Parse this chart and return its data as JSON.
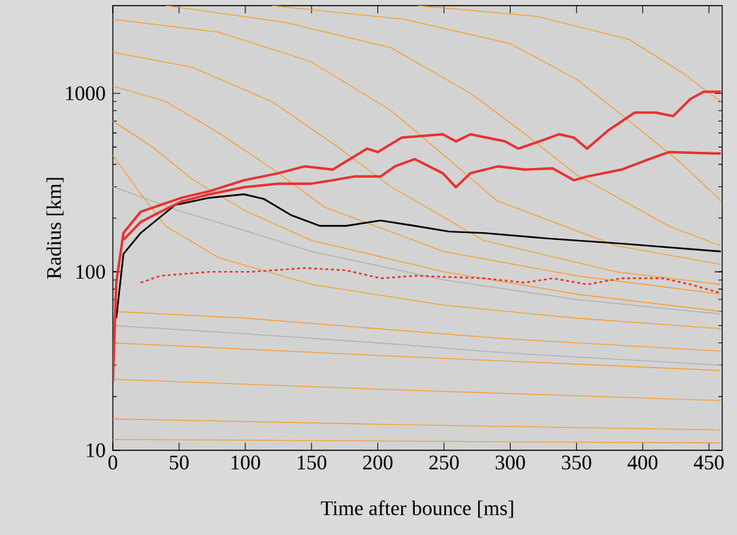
{
  "chart_data": {
    "type": "line",
    "xlabel": "Time after bounce [ms]",
    "ylabel": "Radius [km]",
    "log": "y",
    "xlim": [
      0,
      460
    ],
    "ylim": [
      10,
      3100
    ],
    "xticks": [
      0,
      50,
      100,
      150,
      200,
      250,
      300,
      350,
      400,
      450
    ],
    "yticks": [
      10,
      100,
      1000
    ],
    "series": [
      {
        "color": "#f5a030",
        "x": [
          0,
          30,
          60,
          100,
          150,
          250,
          350,
          459
        ],
        "values": [
          700,
          500,
          330,
          220,
          150,
          100,
          75,
          60
        ]
      },
      {
        "color": "#f5a030",
        "x": [
          0,
          40,
          80,
          120,
          160,
          250,
          350,
          459
        ],
        "values": [
          1100,
          900,
          600,
          380,
          230,
          130,
          95,
          75
        ]
      },
      {
        "color": "#f5a030",
        "x": [
          0,
          60,
          120,
          170,
          210,
          280,
          380,
          459
        ],
        "values": [
          1700,
          1400,
          900,
          500,
          300,
          150,
          100,
          85
        ]
      },
      {
        "color": "#f5a030",
        "x": [
          0,
          80,
          150,
          210,
          250,
          290,
          380,
          459
        ],
        "values": [
          2600,
          2200,
          1500,
          800,
          450,
          250,
          140,
          110
        ]
      },
      {
        "color": "#f5a030",
        "x": [
          40,
          130,
          210,
          270,
          310,
          350,
          420,
          459
        ],
        "values": [
          3100,
          2500,
          1800,
          1000,
          600,
          350,
          180,
          140
        ]
      },
      {
        "color": "#f5a030",
        "x": [
          120,
          220,
          300,
          350,
          390,
          430,
          459
        ],
        "values": [
          3100,
          2600,
          1900,
          1200,
          700,
          400,
          250
        ]
      },
      {
        "color": "#f5a030",
        "x": [
          230,
          320,
          390,
          430,
          459
        ],
        "values": [
          3100,
          2700,
          2000,
          1300,
          900
        ]
      },
      {
        "color": "#f5a030",
        "x": [
          0,
          20,
          40,
          80,
          150,
          250,
          350,
          459
        ],
        "values": [
          450,
          280,
          180,
          120,
          85,
          65,
          55,
          48
        ]
      },
      {
        "color": "#f5a030",
        "x": [
          0,
          100,
          200,
          300,
          459
        ],
        "values": [
          60,
          55,
          48,
          42,
          36
        ]
      },
      {
        "color": "#f5a030",
        "x": [
          0,
          200,
          459
        ],
        "values": [
          40,
          34,
          28
        ]
      },
      {
        "color": "#f5a030",
        "x": [
          0,
          200,
          459
        ],
        "values": [
          25,
          22,
          19
        ]
      },
      {
        "color": "#f5a030",
        "x": [
          0,
          200,
          459
        ],
        "values": [
          15,
          14,
          13
        ]
      },
      {
        "color": "#f5a030",
        "x": [
          0,
          459
        ],
        "values": [
          11.5,
          11
        ]
      },
      {
        "color": "#b0b0b0",
        "x": [
          0,
          50,
          100,
          150,
          250,
          350,
          459
        ],
        "values": [
          300,
          220,
          170,
          130,
          90,
          70,
          58
        ]
      },
      {
        "color": "#b0b0b0",
        "x": [
          0,
          100,
          200,
          300,
          459
        ],
        "values": [
          50,
          45,
          40,
          35,
          30
        ]
      },
      {
        "color": "#000000",
        "x": [
          2.6,
          8,
          21,
          47,
          73,
          99,
          114,
          135,
          156,
          176,
          202,
          228,
          254,
          280,
          332,
          384,
          459
        ],
        "values": [
          55,
          126,
          165,
          237,
          260,
          272,
          256,
          207,
          181,
          181,
          194,
          181,
          168,
          165,
          153,
          144,
          130
        ]
      },
      {
        "color": "#e83030",
        "line_style": "dashed",
        "x": [
          21,
          36,
          73,
          104,
          145,
          176,
          202,
          228,
          280,
          311,
          332,
          358,
          384,
          415,
          436,
          459
        ],
        "values": [
          87,
          95,
          100,
          100,
          105,
          102,
          92,
          95,
          92,
          87,
          92,
          85,
          92,
          92,
          85,
          76
        ]
      },
      {
        "color": "#e83030",
        "x": [
          0,
          2.6,
          8,
          21,
          36,
          52,
          73,
          99,
          125,
          145,
          166,
          192,
          200,
          218,
          249,
          259,
          270,
          296,
          306,
          322,
          337,
          348,
          358,
          374,
          394,
          410,
          423,
          436,
          446,
          459
        ],
        "values": [
          24,
          87,
          165,
          217,
          237,
          260,
          283,
          326,
          357,
          390,
          374,
          490,
          469,
          565,
          590,
          538,
          590,
          538,
          490,
          538,
          590,
          565,
          490,
          620,
          780,
          780,
          745,
          930,
          1020,
          1020
        ]
      },
      {
        "color": "#e83030",
        "x": [
          8,
          21,
          36,
          52,
          73,
          99,
          125,
          150,
          166,
          182,
          202,
          213,
          228,
          249,
          259,
          270,
          291,
          311,
          332,
          348,
          358,
          384,
          405,
          420,
          459
        ],
        "values": [
          151,
          190,
          217,
          248,
          272,
          298,
          312,
          312,
          326,
          342,
          342,
          390,
          428,
          357,
          298,
          357,
          390,
          374,
          380,
          326,
          342,
          374,
          428,
          469,
          460
        ]
      }
    ]
  }
}
